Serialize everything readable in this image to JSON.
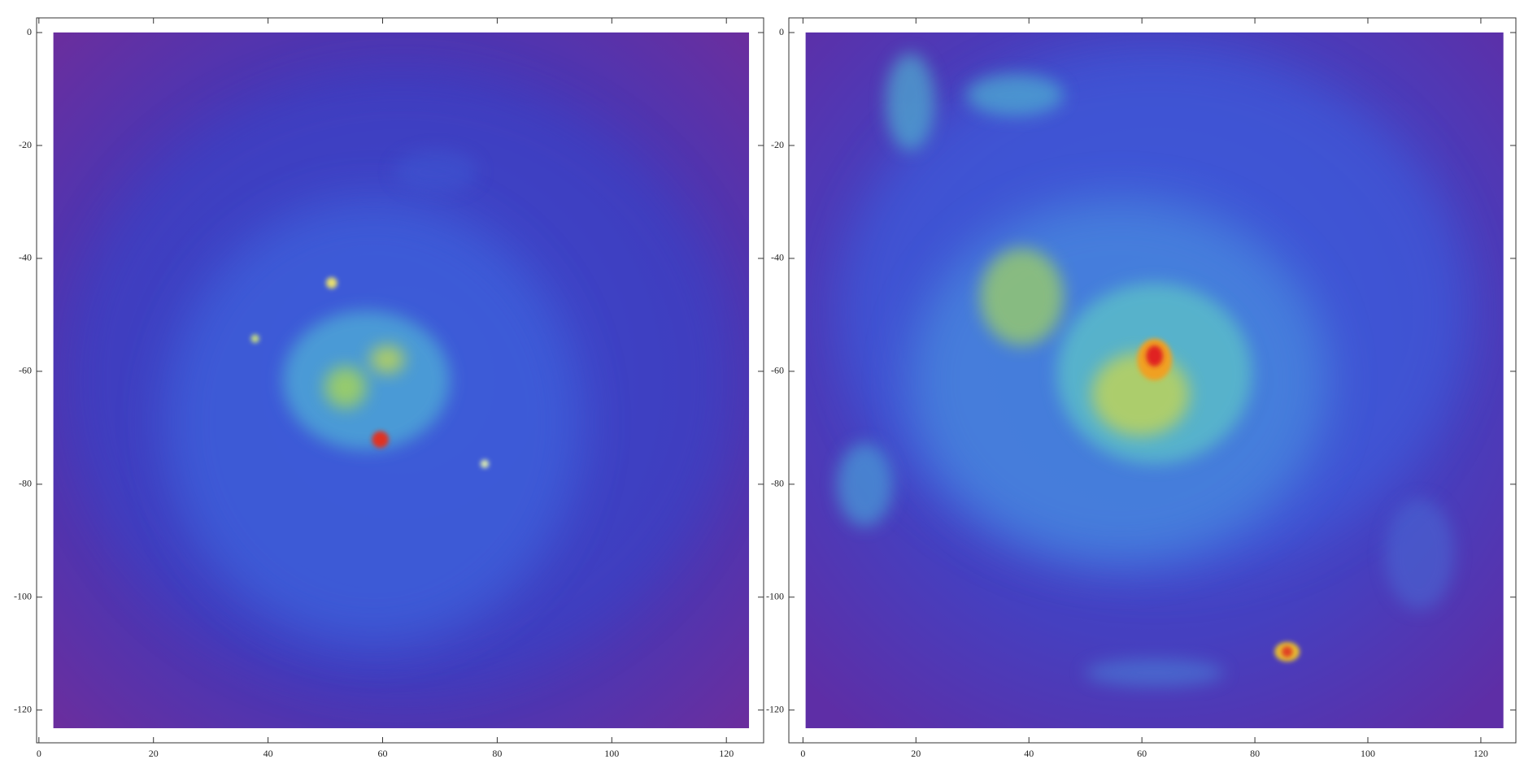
{
  "chart_data": [
    {
      "type": "heatmap",
      "xlim": [
        -0.4,
        126.5
      ],
      "ylim": [
        -125.8,
        2.6
      ],
      "xticks": [
        0,
        20,
        40,
        60,
        80,
        100,
        120
      ],
      "yticks": [
        0,
        -20,
        -40,
        -60,
        -80,
        -100,
        -120
      ]
    },
    {
      "type": "heatmap",
      "xlim": [
        -2.5,
        126.2
      ],
      "ylim": [
        -125.8,
        2.6
      ],
      "xticks": [
        0,
        20,
        40,
        60,
        80,
        100,
        120
      ],
      "yticks": [
        0,
        -20,
        -40,
        -60,
        -80,
        -100,
        -120
      ]
    }
  ]
}
